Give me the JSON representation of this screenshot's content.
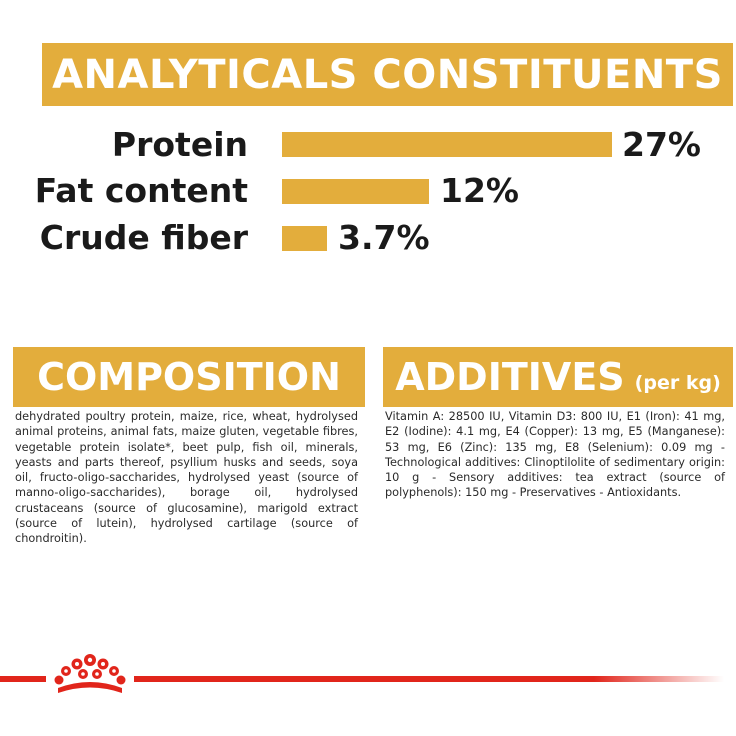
{
  "analyticals": {
    "title": "ANALYTICALS CONSTITUENTS",
    "items": [
      {
        "label": "Protein",
        "value_text": "27%",
        "value": 27
      },
      {
        "label": "Fat content",
        "value_text": "12%",
        "value": 12
      },
      {
        "label": "Crude fiber",
        "value_text": "3.7%",
        "value": 3.7
      }
    ]
  },
  "composition": {
    "title": "COMPOSITION",
    "text": "dehydrated poultry protein, maize, rice, wheat, hydrolysed animal proteins, animal fats, maize gluten, vegetable fibres, vegetable protein isolate*, beet pulp, fish oil, minerals, yeasts and parts thereof, psyllium husks and seeds, soya oil, fructo-oligo-saccharides, hydrolysed yeast (source of manno-oligo-saccharides), borage oil, hydrolysed crustaceans (source of glucosamine), marigold extract (source of lutein), hydrolysed cartilage (source of chondroitin)."
  },
  "additives": {
    "title": "ADDITIVES",
    "suffix": "(per kg)",
    "text": "Vitamin A: 28500 IU, Vitamin D3: 800 IU, E1 (Iron): 41 mg, E2 (Iodine): 4.1 mg, E4 (Copper): 13 mg, E5 (Manganese): 53 mg, E6 (Zinc): 135 mg, E8 (Selenium): 0.09 mg - Technological additives: Clinoptilolite of sedimentary origin: 10 g - Sensory additives: tea extract (source of polyphenols): 150 mg - Preservatives - Antioxidants."
  },
  "colors": {
    "accent": "#e3ad3c",
    "brand_red": "#e1251b",
    "text": "#1a1a1a"
  },
  "brand": {
    "logo_icon": "royal-canin-crown-icon"
  }
}
